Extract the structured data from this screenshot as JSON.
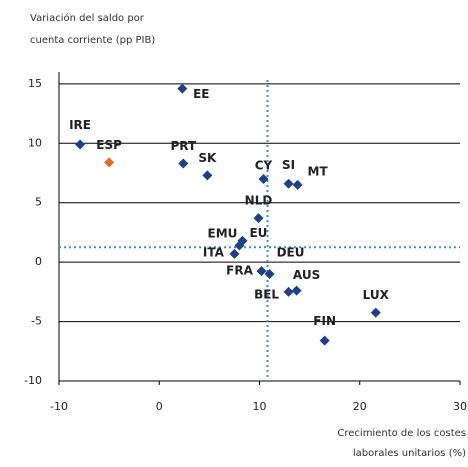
{
  "chart_data": {
    "type": "scatter",
    "y_label": [
      "Variación del saldo por",
      "cuenta corriente (pp PIB)"
    ],
    "x_label": [
      "Crecimiento de los costes",
      "laborales unitarios (%)"
    ],
    "categories": [
      "EE",
      "IRE",
      "ESP",
      "PRT",
      "SK",
      "CY",
      "SI",
      "MT",
      "NLD",
      "EMU",
      "EU",
      "ITA",
      "DEU",
      "FRA",
      "AUS",
      "BEL",
      "LUX",
      "FIN"
    ],
    "x": [
      2.3,
      -7.9,
      -5.0,
      2.4,
      4.8,
      10.4,
      12.9,
      13.8,
      9.9,
      8.3,
      8.0,
      7.5,
      11.0,
      10.2,
      13.7,
      12.9,
      21.6,
      16.5
    ],
    "values": [
      14.6,
      9.9,
      8.4,
      8.3,
      7.3,
      7.0,
      6.6,
      6.5,
      3.7,
      1.8,
      1.4,
      0.7,
      -1.0,
      -0.75,
      -2.4,
      -2.5,
      -4.25,
      -6.6
    ],
    "colors": [
      "#1f3f8a",
      "#1f3f8a",
      "#e8682a",
      "#1f3f8a",
      "#1f3f8a",
      "#1f3f8a",
      "#1f3f8a",
      "#1f3f8a",
      "#1f3f8a",
      "#1f3f8a",
      "#1f3f8a",
      "#1f3f8a",
      "#1f3f8a",
      "#1f3f8a",
      "#1f3f8a",
      "#1f3f8a",
      "#1f3f8a",
      "#1f3f8a"
    ],
    "xlim": [
      -10,
      30
    ],
    "ylim": [
      -10,
      16
    ],
    "xticks": [
      -10,
      0,
      10,
      20,
      30
    ],
    "yticks": [
      -10,
      -5,
      0,
      5,
      10,
      15
    ],
    "reference_lines": {
      "x": 10.8,
      "y": 1.25,
      "color": "#3a8fd0"
    },
    "grid": true
  }
}
